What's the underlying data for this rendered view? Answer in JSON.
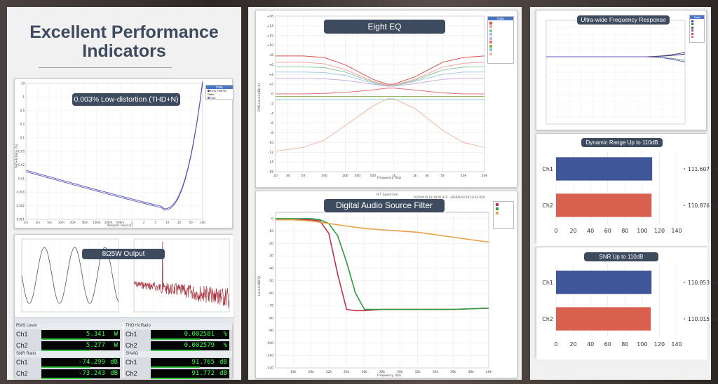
{
  "headline": {
    "line1": "Excellent Performance",
    "line2": "Indicators"
  },
  "cards": {
    "thd": {
      "title": "0.003% Low-distortion (THD+N)",
      "legend_title": "Data",
      "legend_items": [
        "CH1 THD+N Ratio",
        "Ch2"
      ],
      "xlabel": "Analyzer Level (V)",
      "ylabel": "THD+N Ratio (%)",
      "x_ticks": [
        "1m",
        "2m",
        "5m",
        "10m",
        "20m",
        "50m",
        "100m",
        "200m",
        "500m",
        "1",
        "2",
        "5",
        "10",
        "20",
        "50",
        "100"
      ],
      "y_ticks": [
        "10",
        "1",
        "0.5",
        "0.2",
        "0.1",
        "0.05",
        "0.02",
        "0.01",
        "0.005",
        "0.002",
        "0.001"
      ]
    },
    "output": {
      "title": "8Ω5W Output",
      "meters": [
        {
          "header": "RMS Level",
          "rows": [
            {
              "ch": "Ch1",
              "value": "5.341",
              "unit": "W"
            },
            {
              "ch": "Ch2",
              "value": "5.277",
              "unit": "W"
            }
          ]
        },
        {
          "header": "THD+N Ratio",
          "rows": [
            {
              "ch": "Ch1",
              "value": "0.002581",
              "unit": "%"
            },
            {
              "ch": "Ch2",
              "value": "0.002579",
              "unit": "%"
            }
          ]
        },
        {
          "header": "SNR Ratio",
          "rows": [
            {
              "ch": "Ch1",
              "value": "-74.299",
              "unit": "dB"
            },
            {
              "ch": "Ch2",
              "value": "-73.243",
              "unit": "dB"
            }
          ]
        },
        {
          "header": "SINAD",
          "rows": [
            {
              "ch": "Ch1",
              "value": "91.765",
              "unit": "dB"
            },
            {
              "ch": "Ch2",
              "value": "91.772",
              "unit": "dB"
            }
          ]
        }
      ]
    },
    "eq": {
      "title": "Eight EQ",
      "legend_title": "Data",
      "xlabel": "Frequency (Hz)",
      "ylabel": "RMS Level (dBr A)",
      "x_ticks": [
        "20",
        "30",
        "50",
        "100",
        "200",
        "300",
        "500",
        "1k",
        "2k",
        "3k",
        "5k",
        "10k",
        "20k"
      ],
      "y_ticks": [
        "+16",
        "+14",
        "+12",
        "+10",
        "+8",
        "+6",
        "+4",
        "+2",
        "0",
        "-2",
        "-4",
        "-6",
        "-8",
        "-10",
        "-12",
        "-14",
        "-16"
      ]
    },
    "filter": {
      "title": "Digital Audio Source Filter",
      "top_caption": "FFT Spectrum",
      "top_stamp": "2024/9/19 19:18:06.070 - 2024/9/19 19:18:33.939",
      "xlabel": "Frequency (Hz)",
      "ylabel": "Level (dBFS)",
      "x_ticks": [
        "18k",
        "20k",
        "22k",
        "24k",
        "26k",
        "28k",
        "30k",
        "32k",
        "34k",
        "36k",
        "38k",
        "40k"
      ],
      "y_ticks": [
        "0",
        "-10",
        "-20",
        "-30",
        "-40",
        "-50",
        "-60",
        "-70",
        "-80",
        "-90",
        "-100",
        "-110",
        "-120"
      ]
    },
    "wide": {
      "title": "Ultra-wide Frequency Response",
      "legend_title": "Data"
    },
    "dynamic": {
      "title": "Dynamic Range Up to 110dB"
    },
    "snr": {
      "title": "SNR Up to 110dB"
    }
  },
  "chart_data": [
    {
      "type": "bar",
      "title": "Dynamic Range Up to 110dB",
      "orientation": "horizontal",
      "categories": [
        "Ch1",
        "Ch2"
      ],
      "values": [
        111.607,
        110.876
      ],
      "value_labels": [
        "111.607  dB",
        "110.876  dB"
      ],
      "colors": [
        "#3f5698",
        "#d9604f"
      ],
      "x_ticks": [
        "0",
        "20",
        "40",
        "60",
        "80",
        "100",
        "120",
        "140"
      ],
      "xlim": [
        0,
        140
      ]
    },
    {
      "type": "bar",
      "title": "SNR Up to 110dB",
      "orientation": "horizontal",
      "categories": [
        "Ch1",
        "Ch2"
      ],
      "values": [
        110.853,
        110.015
      ],
      "value_labels": [
        "110.853  dB",
        "110.015  dB"
      ],
      "colors": [
        "#3f5698",
        "#d9604f"
      ],
      "x_ticks": [
        "0",
        "20",
        "40",
        "60",
        "80",
        "100",
        "120",
        "140"
      ],
      "xlim": [
        0,
        140
      ]
    },
    {
      "type": "line",
      "title": "Eight EQ",
      "x": [
        20,
        50,
        100,
        200,
        500,
        800,
        1000,
        2000,
        5000,
        10000,
        20000
      ],
      "series": [
        {
          "values": [
            7.8,
            7.8,
            7.5,
            6.0,
            3.0,
            2.0,
            2.0,
            3.5,
            6.5,
            7.5,
            7.8
          ],
          "color": "#d9534f"
        },
        {
          "values": [
            6.5,
            6.5,
            6.2,
            5.0,
            2.6,
            1.8,
            1.8,
            3.0,
            5.5,
            6.3,
            6.5
          ],
          "color": "#f0a7a0"
        },
        {
          "values": [
            5.6,
            5.6,
            5.4,
            4.5,
            2.4,
            1.7,
            1.7,
            2.8,
            4.9,
            5.5,
            5.6
          ],
          "color": "#88c999"
        },
        {
          "values": [
            4.5,
            4.5,
            4.4,
            3.8,
            2.2,
            1.6,
            1.6,
            2.6,
            4.0,
            4.5,
            4.5
          ],
          "color": "#a8c8e8"
        },
        {
          "values": [
            3.2,
            3.2,
            3.1,
            2.8,
            2.0,
            1.6,
            1.6,
            2.1,
            3.0,
            3.2,
            3.2
          ],
          "color": "#c8b0e0"
        },
        {
          "values": [
            0.0,
            0.0,
            0.1,
            0.3,
            0.8,
            1.2,
            1.2,
            0.8,
            0.2,
            0.0,
            0.0
          ],
          "color": "#e0707a"
        },
        {
          "values": [
            -0.5,
            -0.5,
            -0.5,
            -0.5,
            -0.5,
            -0.5,
            -0.5,
            -0.5,
            -0.5,
            -0.5,
            -0.5
          ],
          "color": "#90b060"
        },
        {
          "values": [
            -1.2,
            -1.2,
            -1.2,
            -1.2,
            -1.2,
            -1.2,
            -1.2,
            -1.2,
            -1.2,
            -1.2,
            -1.2
          ],
          "color": "#7fd0c8"
        },
        {
          "values": [
            -11.8,
            -11.0,
            -9.5,
            -6.5,
            -2.5,
            -1.0,
            -1.0,
            -3.0,
            -7.5,
            -10.0,
            -11.0
          ],
          "color": "#f0b8a0"
        }
      ],
      "xlim": [
        20,
        20000
      ],
      "ylim": [
        -16,
        16
      ]
    },
    {
      "type": "line",
      "title": "Digital Audio Source Filter",
      "x": [
        16000,
        18000,
        20000,
        21000,
        22000,
        23000,
        24000,
        25000,
        26000,
        28000,
        32000,
        36000,
        40000
      ],
      "series": [
        {
          "values": [
            -1,
            -1,
            -1,
            -2,
            -12,
            -45,
            -73,
            -74,
            -74,
            -73,
            -73,
            -73,
            -72
          ],
          "color": "#c0304a"
        },
        {
          "values": [
            0,
            0,
            0,
            -1,
            -4,
            -14,
            -35,
            -60,
            -73,
            -73,
            -73,
            -73,
            -72
          ],
          "color": "#2e9b3e"
        },
        {
          "values": [
            -1,
            -1,
            -2,
            -3,
            -4,
            -5,
            -6,
            -7,
            -8,
            -9,
            -11,
            -15,
            -19
          ],
          "color": "#e8a24a"
        }
      ],
      "xlim": [
        16000,
        40000
      ],
      "ylim": [
        -120,
        5
      ]
    }
  ]
}
